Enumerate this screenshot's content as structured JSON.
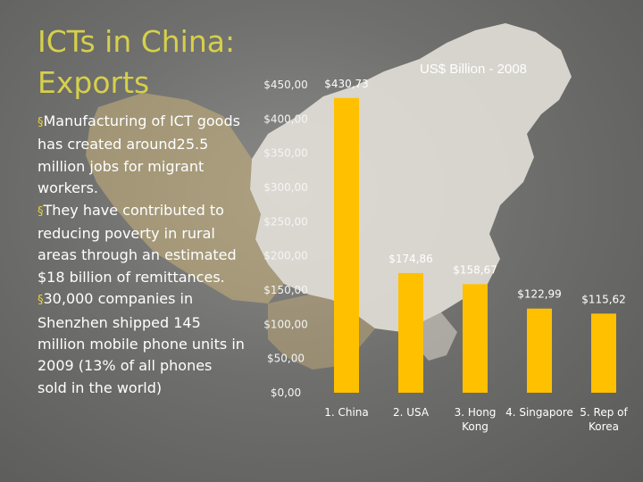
{
  "slide": {
    "title": "ICTs in China: Exports",
    "bullets": [
      "Manufacturing of ICT goods has created around25.5 million jobs for migrant workers.",
      "They have contributed to reducing poverty in rural areas through an estimated $18 billion of remittances.",
      "30,000 companies in Shenzhen shipped 145 million mobile phone units in 2009 (13% of all phones sold in the world)"
    ],
    "colors": {
      "title": "#d6d04a",
      "bar": "#ffc000",
      "background": "#7a7a78"
    },
    "background_image": "map-of-china"
  },
  "chart_data": {
    "type": "bar",
    "title": "US$ Billion - 2008",
    "categories": [
      "1. China",
      "2. USA",
      "3. Hong Kong",
      "4. Singapore",
      "5. Rep of Korea"
    ],
    "category_lines": [
      [
        "1. China"
      ],
      [
        "2. USA"
      ],
      [
        "3. Hong",
        "Kong"
      ],
      [
        "4. Singapore"
      ],
      [
        "5. Rep of",
        "Korea"
      ]
    ],
    "values": [
      430.73,
      174.86,
      158.67,
      122.99,
      115.62
    ],
    "value_labels": [
      "$430,73",
      "$174,86",
      "$158,67",
      "$122,99",
      "$115,62"
    ],
    "ylim": [
      0,
      450
    ],
    "yticks": [
      0,
      50,
      100,
      150,
      200,
      250,
      300,
      350,
      400,
      450
    ],
    "ytick_labels": [
      "$0,00",
      "$50,00",
      "$100,00",
      "$150,00",
      "$200,00",
      "$250,00",
      "$300,00",
      "$350,00",
      "$400,00",
      "$450,00"
    ],
    "bar_color": "#ffc000",
    "grid": false,
    "legend": "none"
  }
}
